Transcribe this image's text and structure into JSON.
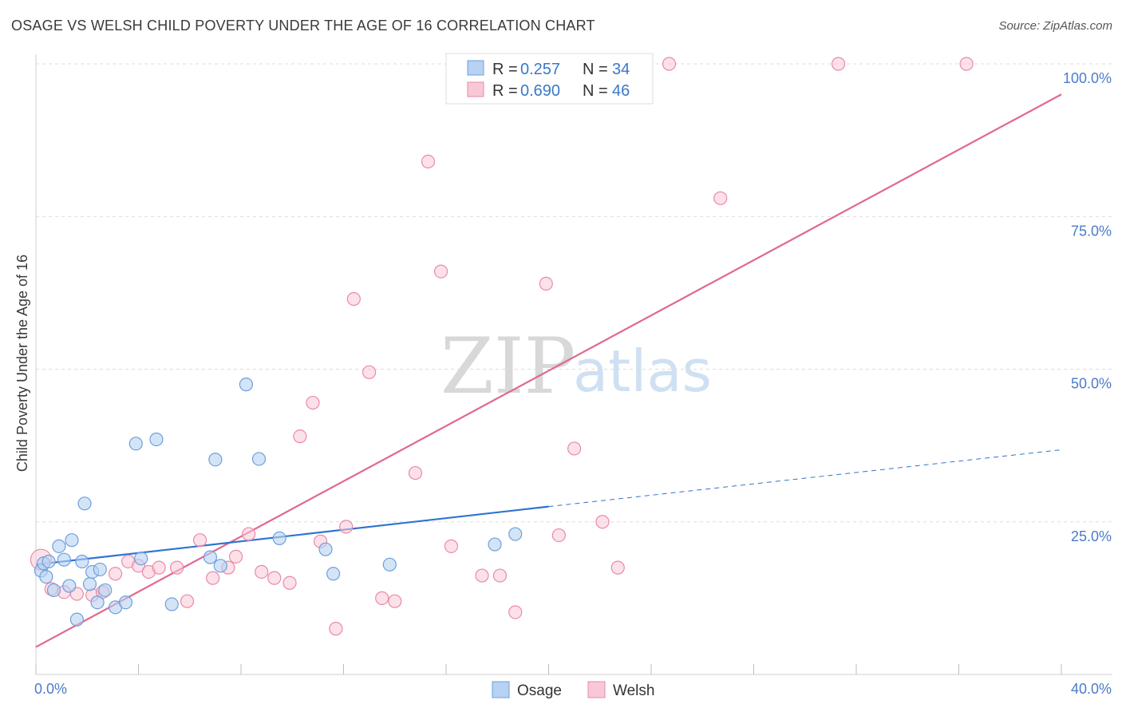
{
  "title": "OSAGE VS WELSH CHILD POVERTY UNDER THE AGE OF 16 CORRELATION CHART",
  "source": "Source: ZipAtlas.com",
  "watermark": {
    "part1": "ZIP",
    "part2": "atlas"
  },
  "colors": {
    "osage_fill": "#b7d2f2",
    "osage_stroke": "#6e9fdc",
    "osage_line": "#2f74cf",
    "welsh_fill": "#f9c8d6",
    "welsh_stroke": "#e98aa8",
    "welsh_line": "#e0688f",
    "grid": "#dcdcdc",
    "tick_text": "#4a7cc9"
  },
  "legend": {
    "osage": {
      "r_label": "R =",
      "r_value": "0.257",
      "n_label": "N =",
      "n_value": "34"
    },
    "welsh": {
      "r_label": "R =",
      "r_value": "0.690",
      "n_label": "N =",
      "n_value": "46"
    }
  },
  "chart_data": {
    "type": "scatter",
    "title": "OSAGE VS WELSH CHILD POVERTY UNDER THE AGE OF 16 CORRELATION CHART",
    "xlabel": "",
    "ylabel": "Child Poverty Under the Age of 16",
    "xlim": [
      0,
      40
    ],
    "ylim": [
      0,
      100
    ],
    "x_tick_labels": [
      "0.0%",
      "40.0%"
    ],
    "y_tick_labels": [
      "100.0%",
      "75.0%",
      "50.0%",
      "25.0%"
    ],
    "y_ticks": [
      100,
      75,
      50,
      25
    ],
    "legend_position": "top-center",
    "series": [
      {
        "name": "Osage",
        "R": 0.257,
        "N": 34,
        "points": [
          [
            0.2,
            17.0
          ],
          [
            0.3,
            18.2
          ],
          [
            0.5,
            18.5
          ],
          [
            0.7,
            13.8
          ],
          [
            0.9,
            21.0
          ],
          [
            1.1,
            18.8
          ],
          [
            1.3,
            14.5
          ],
          [
            1.4,
            22.0
          ],
          [
            1.6,
            9.0
          ],
          [
            1.8,
            18.5
          ],
          [
            1.9,
            28.0
          ],
          [
            2.1,
            14.8
          ],
          [
            2.2,
            16.8
          ],
          [
            2.4,
            11.8
          ],
          [
            2.5,
            17.2
          ],
          [
            2.7,
            13.8
          ],
          [
            3.1,
            11.0
          ],
          [
            3.5,
            11.8
          ],
          [
            3.9,
            37.8
          ],
          [
            4.1,
            19.0
          ],
          [
            4.7,
            38.5
          ],
          [
            5.3,
            11.5
          ],
          [
            6.8,
            19.2
          ],
          [
            7.0,
            35.2
          ],
          [
            7.2,
            17.8
          ],
          [
            8.2,
            47.5
          ],
          [
            8.7,
            35.3
          ],
          [
            9.5,
            22.3
          ],
          [
            11.3,
            20.5
          ],
          [
            11.6,
            16.5
          ],
          [
            13.8,
            18.0
          ],
          [
            17.9,
            21.3
          ],
          [
            18.7,
            23.0
          ],
          [
            0.4,
            16.0
          ]
        ],
        "trend": {
          "x0": 0,
          "y0": 18.0,
          "x1": 20,
          "y1": 27.5,
          "dash_x1": 40,
          "dash_y1": 36.8
        }
      },
      {
        "name": "Welsh",
        "R": 0.69,
        "N": 46,
        "points": [
          [
            0.2,
            18.8
          ],
          [
            0.6,
            14.0
          ],
          [
            1.1,
            13.5
          ],
          [
            1.6,
            13.2
          ],
          [
            2.2,
            13.0
          ],
          [
            2.6,
            13.5
          ],
          [
            3.1,
            16.5
          ],
          [
            3.6,
            18.5
          ],
          [
            4.0,
            17.8
          ],
          [
            4.4,
            16.8
          ],
          [
            4.8,
            17.5
          ],
          [
            5.5,
            17.5
          ],
          [
            5.9,
            12.0
          ],
          [
            6.4,
            22.0
          ],
          [
            6.9,
            15.8
          ],
          [
            7.5,
            17.5
          ],
          [
            7.8,
            19.3
          ],
          [
            8.3,
            23.0
          ],
          [
            8.8,
            16.8
          ],
          [
            9.3,
            15.8
          ],
          [
            9.9,
            15.0
          ],
          [
            10.3,
            39.0
          ],
          [
            10.8,
            44.5
          ],
          [
            11.1,
            21.8
          ],
          [
            11.7,
            7.5
          ],
          [
            12.1,
            24.2
          ],
          [
            12.4,
            61.5
          ],
          [
            13.0,
            49.5
          ],
          [
            13.5,
            12.5
          ],
          [
            14.0,
            12.0
          ],
          [
            14.8,
            33.0
          ],
          [
            15.3,
            84.0
          ],
          [
            15.8,
            66.0
          ],
          [
            16.2,
            21.0
          ],
          [
            17.4,
            16.2
          ],
          [
            18.1,
            16.2
          ],
          [
            18.7,
            10.2
          ],
          [
            19.9,
            64.0
          ],
          [
            20.4,
            22.8
          ],
          [
            21.0,
            37.0
          ],
          [
            22.1,
            25.0
          ],
          [
            22.7,
            17.5
          ],
          [
            24.7,
            100.0
          ],
          [
            26.7,
            78.0
          ],
          [
            31.3,
            100.0
          ],
          [
            36.3,
            100.0
          ]
        ],
        "trend": {
          "x0": 0,
          "y0": 4.5,
          "x1": 40,
          "y1": 95.0
        }
      }
    ]
  },
  "bottom_legend": {
    "osage": "Osage",
    "welsh": "Welsh"
  }
}
